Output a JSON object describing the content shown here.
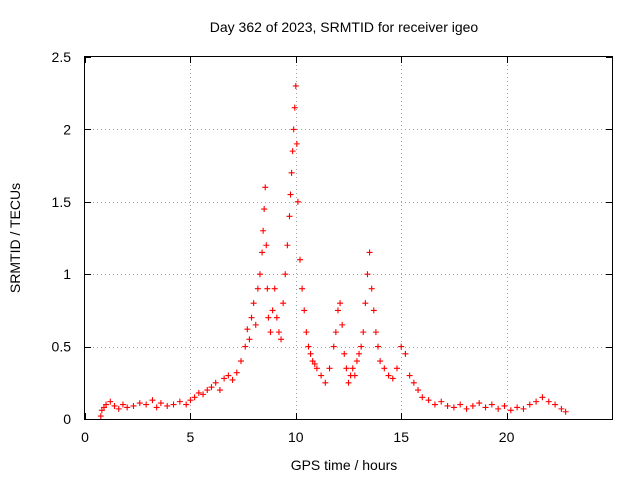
{
  "chart_data": {
    "type": "scatter",
    "title": "Day 362 of 2023, SRMTID for receiver igeo",
    "xlabel": "GPS time / hours",
    "ylabel": "SRMTID / TECUs",
    "xlim": [
      0,
      25
    ],
    "ylim": [
      0,
      2.5
    ],
    "x_ticks": [
      0,
      5,
      10,
      15,
      20
    ],
    "x_tick_labels": [
      "0",
      "5",
      "10",
      "15",
      "20"
    ],
    "y_ticks": [
      0,
      0.5,
      1,
      1.5,
      2,
      2.5
    ],
    "y_tick_labels": [
      "0",
      "0.5",
      "1",
      "1.5",
      "2",
      "2.5"
    ],
    "grid": true,
    "marker": "+",
    "color": "#ff0000",
    "series": [
      {
        "name": "SRMTID",
        "x": [
          0.75,
          0.8,
          0.9,
          1.0,
          1.2,
          1.4,
          1.6,
          1.8,
          2.0,
          2.3,
          2.6,
          2.9,
          3.2,
          3.4,
          3.6,
          3.9,
          4.2,
          4.5,
          4.8,
          5.0,
          5.2,
          5.4,
          5.6,
          5.8,
          6.0,
          6.2,
          6.4,
          6.6,
          6.8,
          7.0,
          7.2,
          7.4,
          7.6,
          7.7,
          7.8,
          7.9,
          8.0,
          8.1,
          8.2,
          8.3,
          8.4,
          8.45,
          8.5,
          8.55,
          8.6,
          8.65,
          8.7,
          8.8,
          8.9,
          9.0,
          9.1,
          9.2,
          9.3,
          9.4,
          9.5,
          9.6,
          9.7,
          9.75,
          9.8,
          9.85,
          9.9,
          9.95,
          10.0,
          10.05,
          10.1,
          10.2,
          10.3,
          10.4,
          10.5,
          10.6,
          10.7,
          10.8,
          10.9,
          11.0,
          11.2,
          11.4,
          11.6,
          11.8,
          11.9,
          12.0,
          12.1,
          12.2,
          12.3,
          12.4,
          12.5,
          12.6,
          12.7,
          12.8,
          12.9,
          13.0,
          13.1,
          13.2,
          13.3,
          13.4,
          13.5,
          13.6,
          13.7,
          13.8,
          13.9,
          14.0,
          14.2,
          14.4,
          14.6,
          14.8,
          15.0,
          15.2,
          15.4,
          15.6,
          15.8,
          16.0,
          16.3,
          16.6,
          16.9,
          17.2,
          17.5,
          17.8,
          18.1,
          18.4,
          18.7,
          19.0,
          19.3,
          19.6,
          19.9,
          20.2,
          20.5,
          20.8,
          21.1,
          21.4,
          21.7,
          22.0,
          22.3,
          22.6,
          22.8
        ],
        "y": [
          0.02,
          0.06,
          0.08,
          0.1,
          0.12,
          0.09,
          0.07,
          0.1,
          0.08,
          0.09,
          0.11,
          0.1,
          0.13,
          0.08,
          0.11,
          0.09,
          0.1,
          0.12,
          0.1,
          0.13,
          0.15,
          0.18,
          0.17,
          0.2,
          0.22,
          0.25,
          0.2,
          0.28,
          0.3,
          0.27,
          0.32,
          0.4,
          0.5,
          0.62,
          0.55,
          0.7,
          0.8,
          0.65,
          0.9,
          1.0,
          1.15,
          1.3,
          1.45,
          1.6,
          1.2,
          0.9,
          0.7,
          0.6,
          0.75,
          0.9,
          0.7,
          0.6,
          0.55,
          0.8,
          1.0,
          1.2,
          1.4,
          1.55,
          1.7,
          1.85,
          2.0,
          2.15,
          2.3,
          1.9,
          1.5,
          1.1,
          0.9,
          0.75,
          0.6,
          0.5,
          0.45,
          0.4,
          0.38,
          0.35,
          0.3,
          0.25,
          0.35,
          0.5,
          0.6,
          0.75,
          0.8,
          0.65,
          0.45,
          0.35,
          0.25,
          0.3,
          0.35,
          0.3,
          0.4,
          0.45,
          0.5,
          0.6,
          0.8,
          1.0,
          1.15,
          0.9,
          0.75,
          0.6,
          0.5,
          0.4,
          0.35,
          0.3,
          0.28,
          0.35,
          0.5,
          0.45,
          0.3,
          0.25,
          0.2,
          0.15,
          0.13,
          0.1,
          0.12,
          0.09,
          0.08,
          0.1,
          0.07,
          0.09,
          0.11,
          0.08,
          0.1,
          0.07,
          0.09,
          0.06,
          0.08,
          0.07,
          0.1,
          0.12,
          0.15,
          0.12,
          0.1,
          0.07,
          0.05
        ]
      }
    ]
  }
}
